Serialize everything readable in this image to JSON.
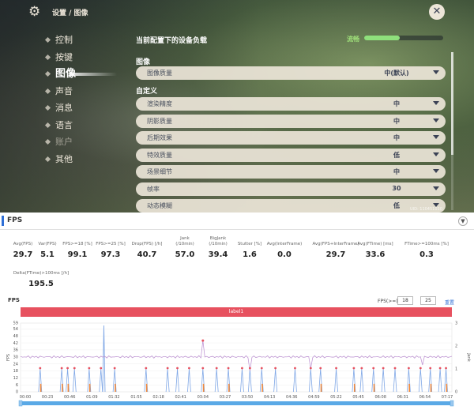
{
  "game": {
    "breadcrumb": "设置 / 图像",
    "sidebar": [
      {
        "label": "控制",
        "state": "normal"
      },
      {
        "label": "按键",
        "state": "normal"
      },
      {
        "label": "图像",
        "state": "active"
      },
      {
        "label": "声音",
        "state": "normal"
      },
      {
        "label": "消息",
        "state": "normal"
      },
      {
        "label": "语言",
        "state": "normal"
      },
      {
        "label": "账户",
        "state": "disabled"
      },
      {
        "label": "其他",
        "state": "normal"
      }
    ],
    "load": {
      "title": "当前配置下的设备负载",
      "label": "流畅",
      "level": 0.45
    },
    "section_image": "图像",
    "image_quality": {
      "label": "图像质量",
      "value": "中(默认)"
    },
    "section_custom": "自定义",
    "settings": [
      {
        "label": "渲染精度",
        "value": "中"
      },
      {
        "label": "阴影质量",
        "value": "中"
      },
      {
        "label": "后期效果",
        "value": "中"
      },
      {
        "label": "特效质量",
        "value": "低"
      },
      {
        "label": "场景细节",
        "value": "中"
      },
      {
        "label": "帧率",
        "value": "30"
      },
      {
        "label": "动态模糊",
        "value": "低"
      }
    ],
    "uid": "UID: 110451030"
  },
  "perf": {
    "title": "FPS",
    "stats_row1": [
      {
        "label": "Avg(FPS)",
        "value": "29.7"
      },
      {
        "label": "Var(FPS)",
        "value": "5.1"
      },
      {
        "label": "FPS>=18 [%]",
        "value": "99.1"
      },
      {
        "label": "FPS>=25 [%]",
        "value": "97.3"
      },
      {
        "label": "Drop(FPS) [/h]",
        "value": "40.7"
      },
      {
        "label": "Jank\n(/10min)",
        "value": "57.0"
      },
      {
        "label": "BigJank\n(/10min)",
        "value": "39.4"
      },
      {
        "label": "Stutter [%]",
        "value": "1.6"
      },
      {
        "label": "Avg(InterFrame)",
        "value": "0.0"
      },
      {
        "label": "Avg(FPS+InterFrame)",
        "value": "29.7"
      },
      {
        "label": "Avg(FTime) [ms]",
        "value": "33.6"
      },
      {
        "label": "FTime>=100ms [%]",
        "value": "0.3"
      }
    ],
    "stats_row2": [
      {
        "label": "Delta(FTime)>100ms [/h]",
        "value": "195.5"
      }
    ],
    "chart_title": "FPS",
    "fps_filter_label": "FPS(>=)",
    "fps_filter_values": [
      "18",
      "25"
    ],
    "reset_label": "重置",
    "band_label": "label1",
    "colors": {
      "fps": "#b98bd0",
      "jank": "#7fa7e6",
      "bigjank": "#f08a3e",
      "marker": "#e7515f",
      "band": "#e7515f",
      "slider": "#5aa9e6"
    }
  },
  "chart_data": {
    "type": "line",
    "title": "FPS",
    "xlabel": "",
    "ylabel": "FPS",
    "y2label": "Jank",
    "ylim": [
      0,
      59
    ],
    "y2lim": [
      0,
      3
    ],
    "yticks": [
      0,
      6,
      12,
      18,
      24,
      30,
      36,
      42,
      48,
      54,
      59
    ],
    "y2ticks": [
      0,
      1,
      2,
      3
    ],
    "xticks": [
      "00:00",
      "00:23",
      "00:46",
      "01:09",
      "01:32",
      "01:55",
      "02:18",
      "02:41",
      "03:04",
      "03:27",
      "03:50",
      "04:13",
      "04:36",
      "04:59",
      "05:22",
      "05:45",
      "06:08",
      "06:31",
      "06:54",
      "07:17"
    ],
    "x_seconds_max": 440,
    "fps_baseline": 30,
    "jank_events_sec": [
      20,
      42,
      48,
      55,
      70,
      82,
      96,
      128,
      150,
      160,
      172,
      186,
      200,
      212,
      226,
      234,
      246,
      260,
      280,
      296,
      306,
      322,
      340,
      348,
      360,
      370,
      382,
      396,
      408,
      418,
      428,
      434
    ],
    "bigjank_events_sec": [
      20,
      42,
      48,
      70,
      96,
      128,
      186,
      212,
      246,
      306,
      340,
      360,
      396,
      418,
      434
    ],
    "spikes": [
      {
        "x_sec": 85,
        "fps": 57
      }
    ],
    "fps_drops": [
      {
        "x_sec": 186,
        "fps": 22
      },
      {
        "x_sec": 234,
        "fps": 18
      },
      {
        "x_sec": 296,
        "fps": 20
      },
      {
        "x_sec": 410,
        "fps": 23
      }
    ],
    "legend": "none"
  }
}
